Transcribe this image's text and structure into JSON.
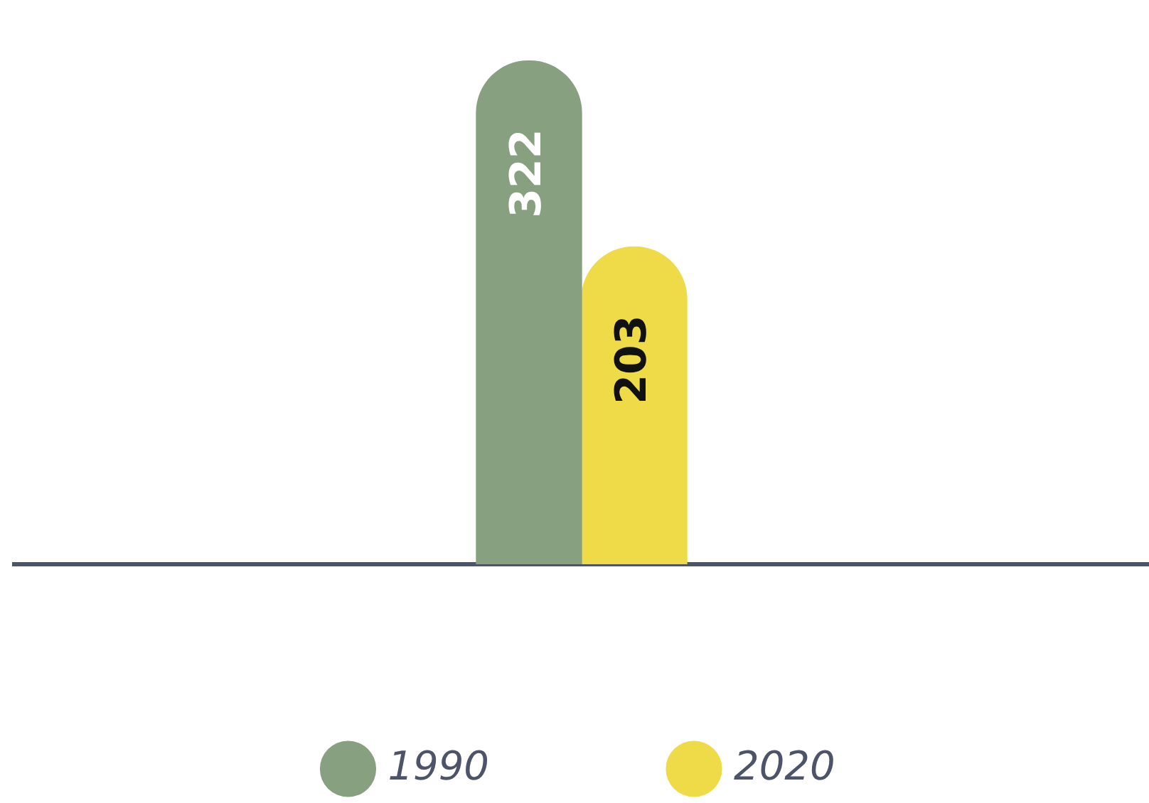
{
  "chart_data": {
    "type": "bar",
    "categories": [
      null
    ],
    "series": [
      {
        "name": "1990",
        "color": "#87a07f",
        "values": [
          322
        ]
      },
      {
        "name": "2020",
        "color": "#efdb47",
        "values": [
          203
        ]
      }
    ],
    "data_labels": true,
    "legend": "bottom",
    "grid": false
  }
}
